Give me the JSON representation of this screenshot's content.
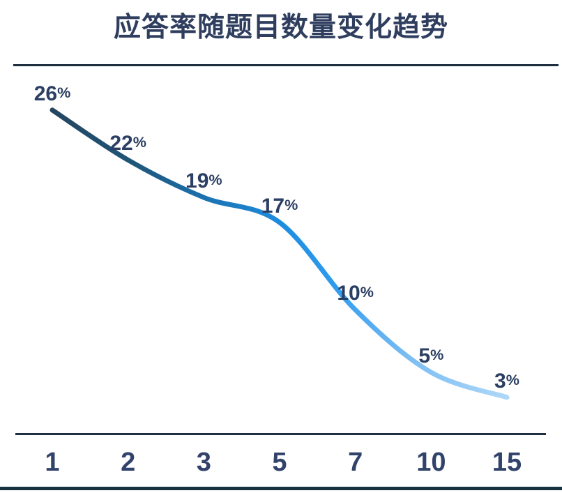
{
  "title": "应答率随题目数量变化趋势",
  "colors": {
    "title": "#2F3E5E",
    "data_label": "#2B3E63",
    "tick_label": "#32436B",
    "border_line": "#1E3040",
    "bottom_rule": "#17333F",
    "plot_background": "#FFFFFF"
  },
  "chart_data": {
    "type": "line",
    "title": "应答率随题目数量变化趋势",
    "categories": [
      "1",
      "2",
      "3",
      "5",
      "7",
      "10",
      "15"
    ],
    "values": [
      26,
      22,
      19,
      17,
      10,
      5,
      3
    ],
    "data_labels": [
      "26%",
      "22%",
      "19%",
      "17%",
      "10%",
      "5%",
      "3%"
    ],
    "xlabel": "",
    "ylabel": "",
    "ylim": [
      0,
      30
    ],
    "grid": false,
    "legend": "none",
    "markers": false,
    "line_gradient": [
      {
        "offset": 0.0,
        "color": "#25455F"
      },
      {
        "offset": 0.18,
        "color": "#1E567A"
      },
      {
        "offset": 0.35,
        "color": "#1B74B4"
      },
      {
        "offset": 0.5,
        "color": "#1E8CDE"
      },
      {
        "offset": 0.62,
        "color": "#2E9BEF"
      },
      {
        "offset": 0.78,
        "color": "#7BBDF3"
      },
      {
        "offset": 1.0,
        "color": "#AFD7F8"
      }
    ]
  }
}
